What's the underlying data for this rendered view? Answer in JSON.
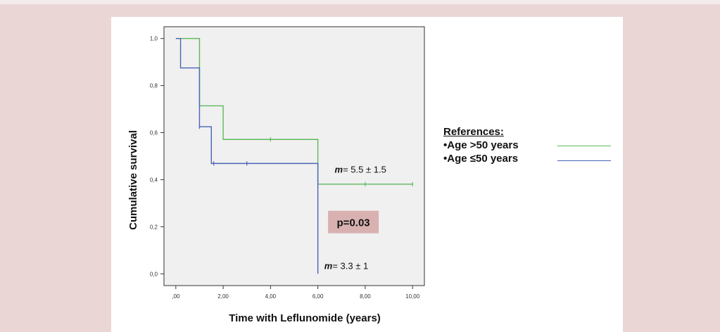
{
  "chart_data": {
    "type": "line",
    "subtype": "kaplan-meier step",
    "xlabel": "Time with Leflunomide (years)",
    "ylabel": "Cumulative survival",
    "xlim": [
      -0.5,
      10.5
    ],
    "ylim": [
      -0.05,
      1.05
    ],
    "x_ticks": [
      0,
      2,
      4,
      6,
      8,
      10
    ],
    "x_tick_labels": [
      ",00",
      "2,00",
      "4,00",
      "6,00",
      "8,00",
      "10,00"
    ],
    "y_ticks": [
      0,
      0.2,
      0.4,
      0.6,
      0.8,
      1.0
    ],
    "y_tick_labels": [
      "0,0",
      "0,2",
      "0,4",
      "0,6",
      "0,8",
      "1,0"
    ],
    "grid": false,
    "series": [
      {
        "name": "•Age >50 years",
        "color": "#5cb85c",
        "steps": [
          [
            0,
            1.0
          ],
          [
            1,
            0.714
          ],
          [
            2,
            0.571
          ],
          [
            6,
            0.381
          ],
          [
            10,
            0.381
          ]
        ],
        "censored": [
          [
            4,
            0.571
          ],
          [
            8,
            0.381
          ],
          [
            10,
            0.381
          ]
        ]
      },
      {
        "name": "•Age ≤50 years",
        "color": "#4a63b5",
        "steps": [
          [
            0,
            1.0
          ],
          [
            0.2,
            0.875
          ],
          [
            1,
            0.625
          ],
          [
            1.5,
            0.469
          ],
          [
            6,
            0.0
          ]
        ],
        "censored": [
          [
            1,
            0.625
          ],
          [
            1.6,
            0.469
          ],
          [
            3,
            0.469
          ]
        ]
      }
    ],
    "annotations": [
      {
        "label": "m",
        "text": "= 5.5 ± 1.5",
        "x": 7.8,
        "y": 0.43
      },
      {
        "label": "m",
        "text": "= 3.3 ± 1",
        "x": 7.2,
        "y": 0.02
      },
      {
        "text": "p=0.03",
        "x": 7.5,
        "y": 0.22,
        "boxed": true
      }
    ],
    "legend": {
      "title": "References:",
      "placement": "right",
      "items": [
        "•Age >50 years",
        "•Age ≤50 years"
      ]
    }
  },
  "colors": {
    "background": "#ebd6d6",
    "plot_area": "#f0f0f0",
    "pvalue_box": "#d9b1b1"
  }
}
